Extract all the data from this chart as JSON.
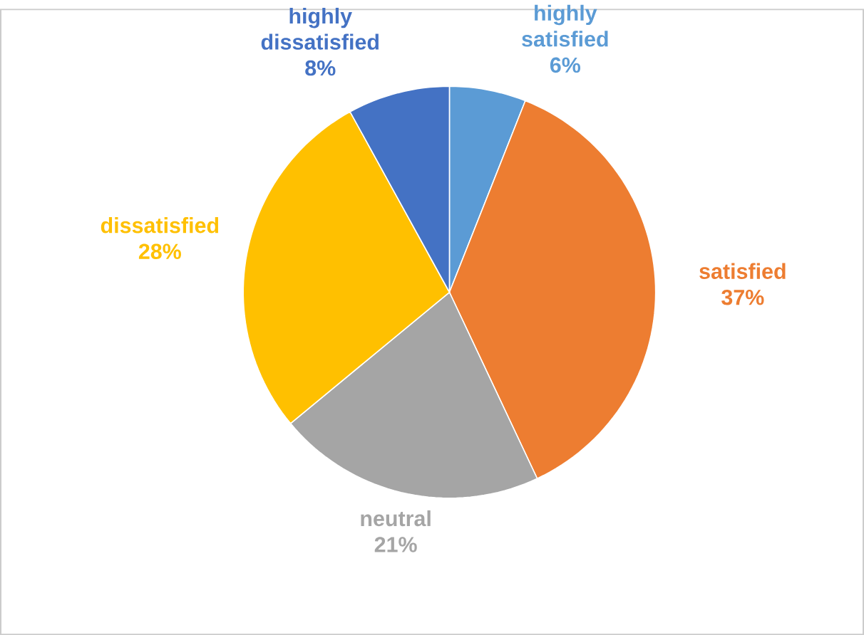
{
  "chart_data": {
    "type": "pie",
    "categories": [
      "highly satisfied",
      "satisfied",
      "neutral",
      "dissatisfied",
      "highly dissatisfied"
    ],
    "values": [
      6,
      37,
      21,
      28,
      8
    ],
    "value_labels": [
      "6%",
      "37%",
      "21%",
      "28%",
      "8%"
    ],
    "colors": [
      "#5b9bd5",
      "#ed7d31",
      "#a5a5a5",
      "#ffc000",
      "#4472c4"
    ],
    "legend": false
  }
}
